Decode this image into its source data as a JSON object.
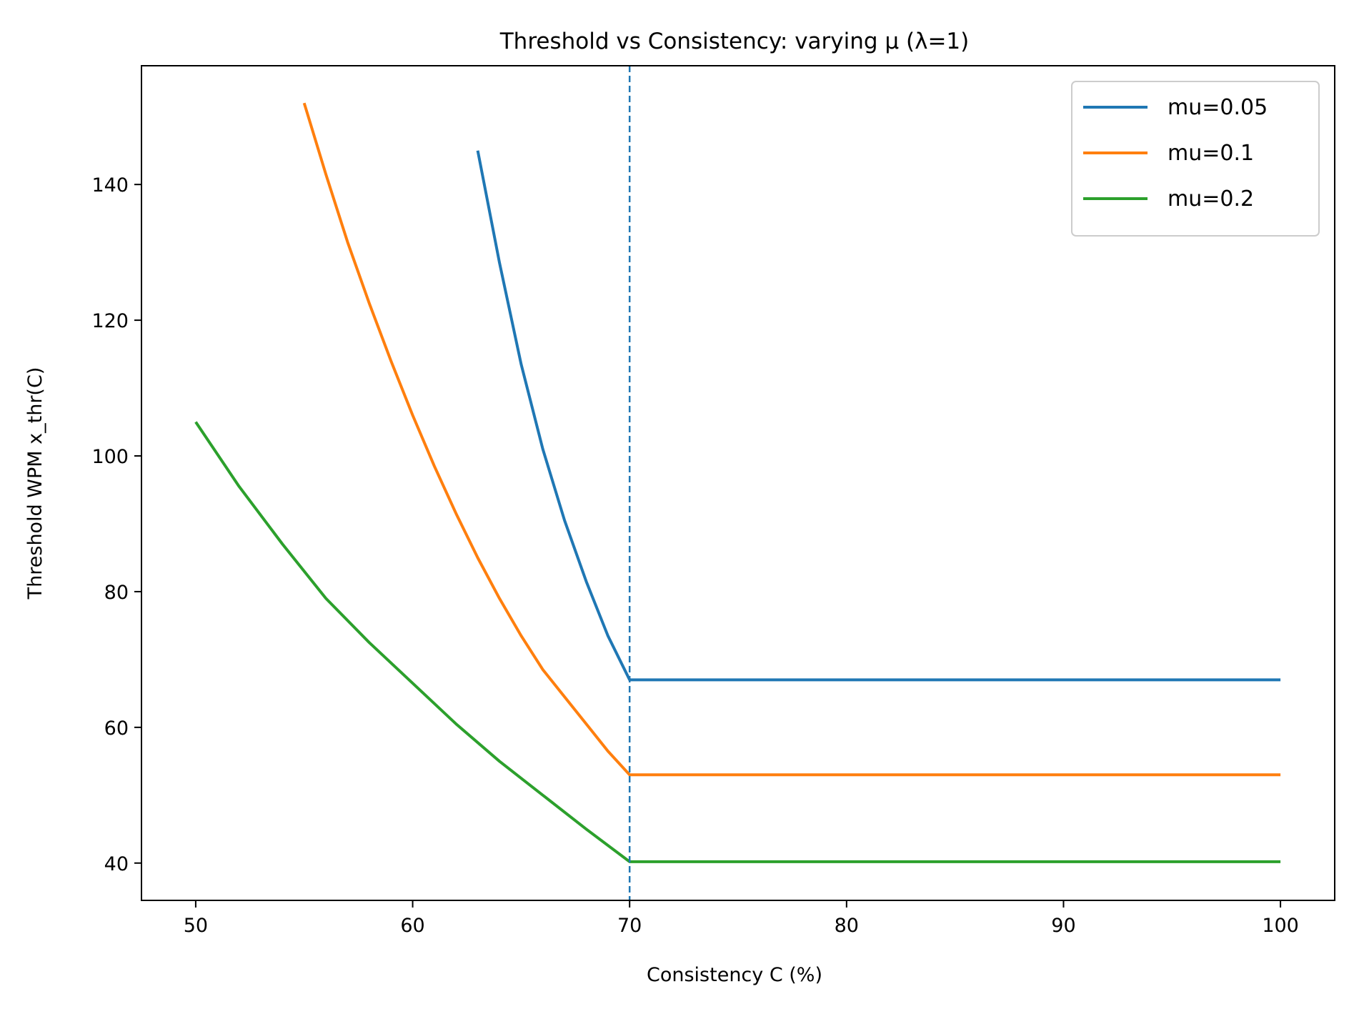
{
  "chart_data": {
    "type": "line",
    "title": "Threshold vs Consistency: varying μ (λ=1)",
    "xlabel": "Consistency C (%)",
    "ylabel": "Threshold WPM x_thr(C)",
    "xlim": [
      47.5,
      102.5
    ],
    "ylim": [
      34.5,
      157.5
    ],
    "xticks": [
      50,
      60,
      70,
      80,
      90,
      100
    ],
    "yticks": [
      40,
      60,
      80,
      100,
      120,
      140
    ],
    "grid": false,
    "legend_position": "upper right",
    "reference_line": {
      "x": 70,
      "style": "dashed",
      "color": "#1f77b4"
    },
    "series": [
      {
        "name": "mu=0.05",
        "color": "#1f77b4",
        "x": [
          63,
          64,
          65,
          66,
          67,
          68,
          69,
          70,
          71,
          75,
          80,
          85,
          90,
          95,
          100
        ],
        "y": [
          145,
          128.5,
          113.5,
          101,
          90.5,
          81.5,
          73.5,
          67,
          67,
          67,
          67,
          67,
          67,
          67,
          67
        ]
      },
      {
        "name": "mu=0.1",
        "color": "#ff7f0e",
        "x": [
          55,
          56,
          57,
          58,
          59,
          60,
          61,
          62,
          63,
          64,
          65,
          66,
          67,
          68,
          69,
          70,
          71,
          75,
          80,
          85,
          90,
          95,
          100
        ],
        "y": [
          152,
          141.5,
          131.5,
          122.5,
          114,
          106,
          98.5,
          91.5,
          85,
          79,
          73.5,
          68.5,
          64.5,
          60.5,
          56.5,
          53,
          53,
          53,
          53,
          53,
          53,
          53,
          53
        ]
      },
      {
        "name": "mu=0.2",
        "color": "#2ca02c",
        "x": [
          50,
          52,
          54,
          56,
          58,
          60,
          62,
          64,
          66,
          68,
          70,
          71,
          75,
          80,
          85,
          90,
          95,
          100
        ],
        "y": [
          105,
          95.5,
          87,
          79,
          72.5,
          66.5,
          60.5,
          55,
          50,
          45,
          40.2,
          40.2,
          40.2,
          40.2,
          40.2,
          40.2,
          40.2,
          40.2
        ]
      }
    ]
  }
}
